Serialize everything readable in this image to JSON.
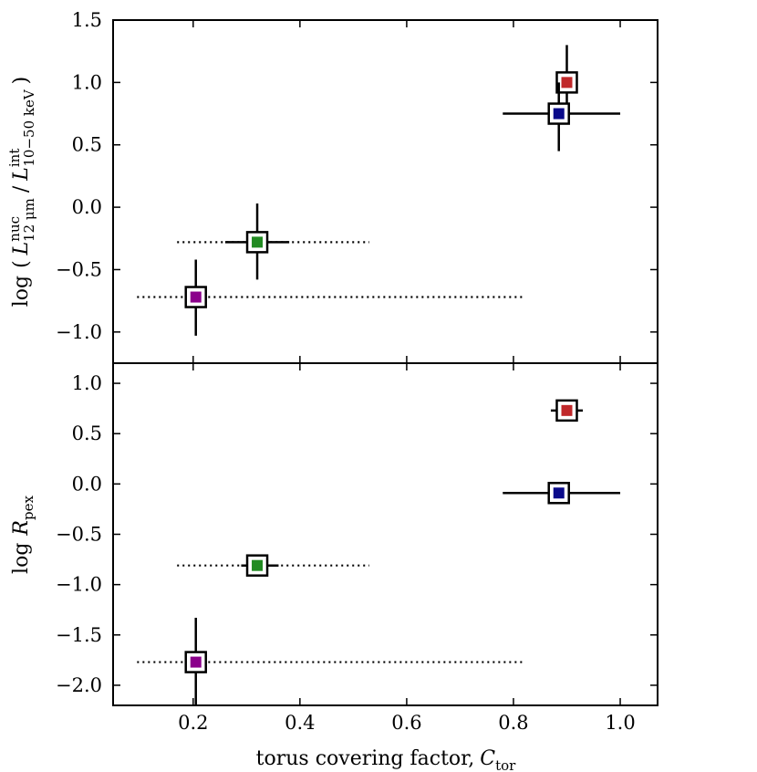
{
  "chart_data": [
    {
      "type": "scatter",
      "panel": "top",
      "ylabel": {
        "prefix": "log",
        "open": "(",
        "L1": "L",
        "L1_sup": "nuc",
        "L1_sub": "12 μm",
        "slash": "/",
        "L2": "L",
        "L2_sup": "int",
        "L2_sub": "10−50 keV",
        "close": ")"
      },
      "xlim": [
        0.05,
        1.07
      ],
      "ylim": [
        -1.25,
        1.5
      ],
      "yticks": [
        -1.0,
        -0.5,
        0.0,
        0.5,
        1.0,
        1.5
      ],
      "ytick_labels": [
        "−1.0",
        "−0.5",
        "0.0",
        "0.5",
        "1.0",
        "1.5"
      ],
      "points": [
        {
          "name": "red",
          "color": "#c0282a",
          "x": 0.9,
          "y": 1.0,
          "xerr_solid": [
            0.88,
            0.92
          ],
          "xerr_dotted": null,
          "yerr_solid": [
            0.72,
            1.3
          ]
        },
        {
          "name": "blue",
          "color": "#0a0a8a",
          "x": 0.885,
          "y": 0.75,
          "xerr_solid": [
            0.78,
            1.0
          ],
          "xerr_dotted": null,
          "yerr_solid": [
            0.45,
            1.0
          ]
        },
        {
          "name": "green",
          "color": "#228b22",
          "x": 0.32,
          "y": -0.28,
          "xerr_solid": [
            0.26,
            0.38
          ],
          "xerr_dotted": [
            0.17,
            0.53
          ],
          "yerr_solid": [
            -0.58,
            0.03
          ]
        },
        {
          "name": "purple",
          "color": "#8b008b",
          "x": 0.205,
          "y": -0.72,
          "xerr_solid": [
            0.19,
            0.22
          ],
          "xerr_dotted": [
            0.095,
            0.82
          ],
          "yerr_solid": [
            -1.03,
            -0.42
          ]
        }
      ]
    },
    {
      "type": "scatter",
      "panel": "bottom",
      "ylabel": {
        "prefix": "log",
        "R": "R",
        "R_sub": "pex"
      },
      "xlabel": {
        "text": "torus covering factor,",
        "C": "C",
        "C_sub": "tor"
      },
      "xlim": [
        0.05,
        1.07
      ],
      "ylim": [
        -2.2,
        1.2
      ],
      "xticks": [
        0.2,
        0.4,
        0.6,
        0.8,
        1.0
      ],
      "xtick_labels": [
        "0.2",
        "0.4",
        "0.6",
        "0.8",
        "1.0"
      ],
      "yticks": [
        -2.0,
        -1.5,
        -1.0,
        -0.5,
        0.0,
        0.5,
        1.0
      ],
      "ytick_labels": [
        "−2.0",
        "−1.5",
        "−1.0",
        "−0.5",
        "0.0",
        "0.5",
        "1.0"
      ],
      "points": [
        {
          "name": "red",
          "color": "#c0282a",
          "x": 0.9,
          "y": 0.73,
          "xerr_solid": [
            0.87,
            0.93
          ],
          "xerr_dotted": null,
          "yerr_solid": null
        },
        {
          "name": "blue",
          "color": "#0a0a8a",
          "x": 0.885,
          "y": -0.09,
          "xerr_solid": [
            0.78,
            1.0
          ],
          "xerr_dotted": null,
          "yerr_solid": null
        },
        {
          "name": "green",
          "color": "#228b22",
          "x": 0.32,
          "y": -0.81,
          "xerr_solid": [
            0.29,
            0.36
          ],
          "xerr_dotted": [
            0.17,
            0.53
          ],
          "yerr_solid": null
        },
        {
          "name": "purple",
          "color": "#8b008b",
          "x": 0.205,
          "y": -1.77,
          "xerr_solid": null,
          "xerr_dotted": [
            0.095,
            0.82
          ],
          "yerr_solid": [
            -2.2,
            -1.33
          ]
        }
      ]
    }
  ]
}
